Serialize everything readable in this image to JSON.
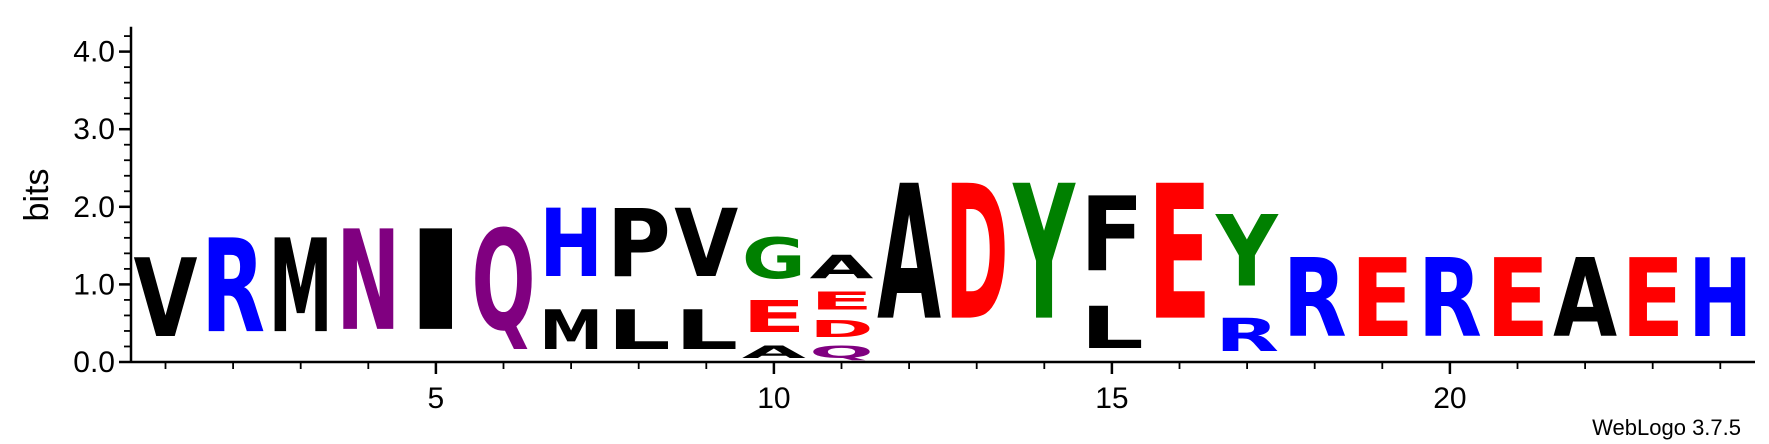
{
  "chart_data": {
    "type": "sequence-logo",
    "ylabel": "bits",
    "ylim": [
      0,
      4.32
    ],
    "yticks": [
      {
        "value": 0,
        "label": "0.0"
      },
      {
        "value": 1,
        "label": "1.0"
      },
      {
        "value": 2,
        "label": "2.0"
      },
      {
        "value": 3,
        "label": "3.0"
      },
      {
        "value": 4,
        "label": "4.0"
      }
    ],
    "xticks": [
      {
        "value": 5,
        "label": "5"
      },
      {
        "value": 10,
        "label": "10"
      },
      {
        "value": 15,
        "label": "15"
      },
      {
        "value": 20,
        "label": "20"
      }
    ],
    "positions": [
      1,
      2,
      3,
      4,
      5,
      6,
      7,
      8,
      9,
      10,
      11,
      12,
      13,
      14,
      15,
      16,
      17,
      18,
      19,
      20,
      21,
      22,
      23,
      24
    ],
    "colors": {
      "A": "#000000",
      "F": "#000000",
      "I": "#000000",
      "L": "#000000",
      "M": "#000000",
      "P": "#000000",
      "V": "#000000",
      "W": "#000000",
      "G": "#008000",
      "Y": "#008000",
      "S": "#008000",
      "T": "#008000",
      "C": "#008000",
      "H": "#0000ff",
      "K": "#0000ff",
      "R": "#0000ff",
      "D": "#ff0000",
      "E": "#ff0000",
      "N": "#800080",
      "Q": "#800080"
    },
    "columns": [
      {
        "pos": 1,
        "stack": [
          {
            "aa": "V",
            "h": 1.63
          }
        ]
      },
      {
        "pos": 2,
        "stack": [
          {
            "aa": "R",
            "h": 1.94
          }
        ]
      },
      {
        "pos": 3,
        "stack": [
          {
            "aa": "M",
            "h": 1.94
          }
        ]
      },
      {
        "pos": 4,
        "stack": [
          {
            "aa": "N",
            "h": 2.08
          }
        ]
      },
      {
        "pos": 5,
        "stack": [
          {
            "aa": "I",
            "h": 2.08
          }
        ]
      },
      {
        "pos": 6,
        "stack": [
          {
            "aa": "Q",
            "h": 2.08
          }
        ]
      },
      {
        "pos": 7,
        "stack": [
          {
            "aa": "M",
            "h": 0.82
          },
          {
            "aa": "H",
            "h": 1.41
          }
        ]
      },
      {
        "pos": 8,
        "stack": [
          {
            "aa": "L",
            "h": 0.82
          },
          {
            "aa": "P",
            "h": 1.41
          }
        ]
      },
      {
        "pos": 9,
        "stack": [
          {
            "aa": "L",
            "h": 0.82
          },
          {
            "aa": "V",
            "h": 1.41
          }
        ]
      },
      {
        "pos": 10,
        "stack": [
          {
            "aa": "A",
            "h": 0.25
          },
          {
            "aa": "E",
            "h": 0.66
          },
          {
            "aa": "G",
            "h": 0.85
          }
        ]
      },
      {
        "pos": 11,
        "stack": [
          {
            "aa": "Q",
            "h": 0.25
          },
          {
            "aa": "D",
            "h": 0.35
          },
          {
            "aa": "E",
            "h": 0.38
          },
          {
            "aa": "A",
            "h": 0.48
          }
        ]
      },
      {
        "pos": 12,
        "stack": [
          {
            "aa": "A",
            "h": 2.79
          }
        ]
      },
      {
        "pos": 13,
        "stack": [
          {
            "aa": "D",
            "h": 2.79
          }
        ]
      },
      {
        "pos": 14,
        "stack": [
          {
            "aa": "Y",
            "h": 2.79
          }
        ]
      },
      {
        "pos": 15,
        "stack": [
          {
            "aa": "L",
            "h": 0.87
          },
          {
            "aa": "F",
            "h": 1.55
          }
        ]
      },
      {
        "pos": 16,
        "stack": [
          {
            "aa": "E",
            "h": 2.79
          }
        ]
      },
      {
        "pos": 17,
        "stack": [
          {
            "aa": "R",
            "h": 0.68
          },
          {
            "aa": "Y",
            "h": 1.48
          }
        ]
      },
      {
        "pos": 18,
        "stack": [
          {
            "aa": "R",
            "h": 1.63
          }
        ]
      },
      {
        "pos": 19,
        "stack": [
          {
            "aa": "E",
            "h": 1.63
          }
        ]
      },
      {
        "pos": 20,
        "stack": [
          {
            "aa": "R",
            "h": 1.63
          }
        ]
      },
      {
        "pos": 21,
        "stack": [
          {
            "aa": "E",
            "h": 1.63
          }
        ]
      },
      {
        "pos": 22,
        "stack": [
          {
            "aa": "A",
            "h": 1.63
          }
        ]
      },
      {
        "pos": 23,
        "stack": [
          {
            "aa": "E",
            "h": 1.63
          }
        ]
      },
      {
        "pos": 24,
        "stack": [
          {
            "aa": "H",
            "h": 1.63
          }
        ]
      }
    ]
  },
  "credit": "WebLogo 3.7.5"
}
